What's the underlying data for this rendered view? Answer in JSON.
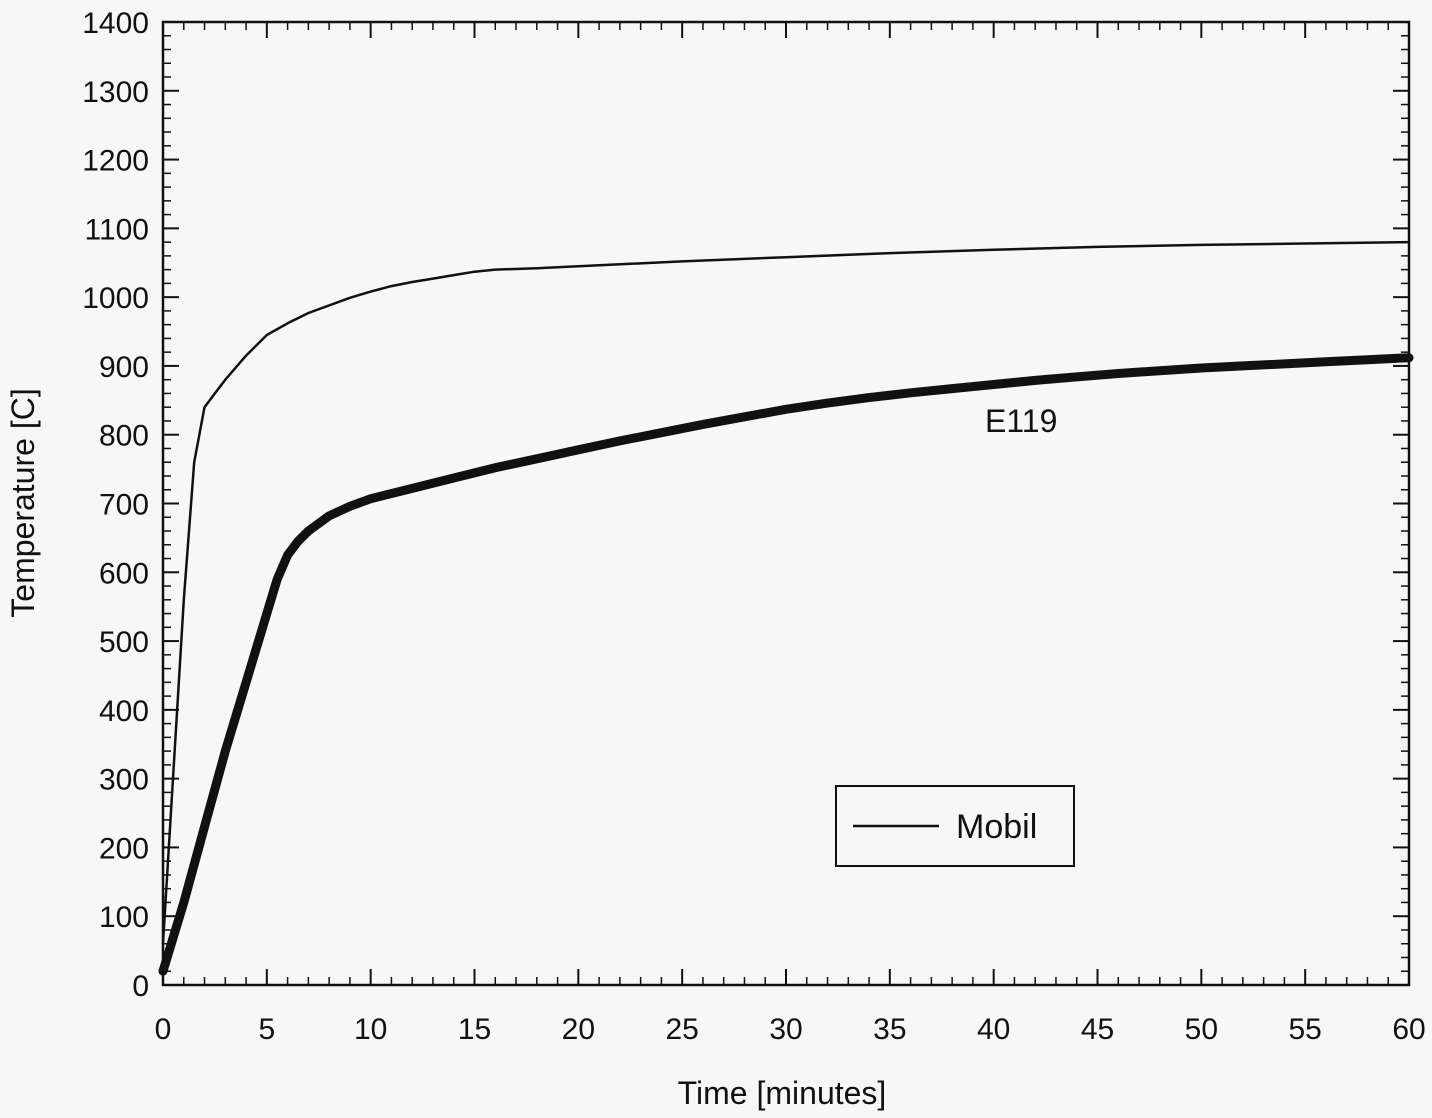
{
  "chart_data": {
    "type": "line",
    "xlabel": "Time [minutes]",
    "ylabel": "Temperature [C]",
    "xlim": [
      0,
      60
    ],
    "ylim": [
      0,
      1400
    ],
    "x_ticks": [
      "0",
      "5",
      "10",
      "15",
      "20",
      "25",
      "30",
      "35",
      "40",
      "45",
      "50",
      "55",
      "60"
    ],
    "y_ticks": [
      "0",
      "100",
      "200",
      "300",
      "400",
      "500",
      "600",
      "700",
      "800",
      "900",
      "1000",
      "1100",
      "1200",
      "1300",
      "1400"
    ],
    "grid": false,
    "legend": {
      "position": "lower-right",
      "entries": [
        "Mobil"
      ]
    },
    "annotations": [
      {
        "text": "E119",
        "x": 42.5,
        "y": 820
      }
    ],
    "series": [
      {
        "name": "Mobil",
        "style": "thin",
        "x": [
          0,
          0.5,
          1,
          1.5,
          2,
          2.5,
          3,
          4,
          5,
          6,
          7,
          8,
          9,
          10,
          11,
          12,
          13,
          14,
          15,
          16,
          18,
          20,
          25,
          30,
          35,
          40,
          45,
          50,
          55,
          60
        ],
        "y": [
          60,
          310,
          560,
          760,
          840,
          860,
          880,
          915,
          945,
          962,
          977,
          988,
          999,
          1008,
          1016,
          1022,
          1027,
          1032,
          1037,
          1040,
          1042,
          1045,
          1052,
          1058,
          1064,
          1069,
          1073,
          1076,
          1078,
          1080
        ]
      },
      {
        "name": "E119",
        "style": "thick",
        "x": [
          0,
          1,
          2,
          3,
          4,
          5,
          5.5,
          6,
          6.5,
          7,
          8,
          9,
          10,
          12,
          14,
          16,
          18,
          20,
          22,
          24,
          26,
          28,
          30,
          32,
          34,
          36,
          38,
          40,
          42,
          44,
          46,
          48,
          50,
          52,
          54,
          56,
          58,
          60
        ],
        "y": [
          20,
          120,
          230,
          340,
          440,
          540,
          590,
          625,
          645,
          660,
          682,
          696,
          707,
          722,
          737,
          752,
          765,
          778,
          791,
          803,
          815,
          826,
          837,
          846,
          854,
          861,
          867,
          873,
          879,
          884,
          889,
          893,
          897,
          900,
          903,
          906,
          909,
          912
        ]
      }
    ]
  }
}
